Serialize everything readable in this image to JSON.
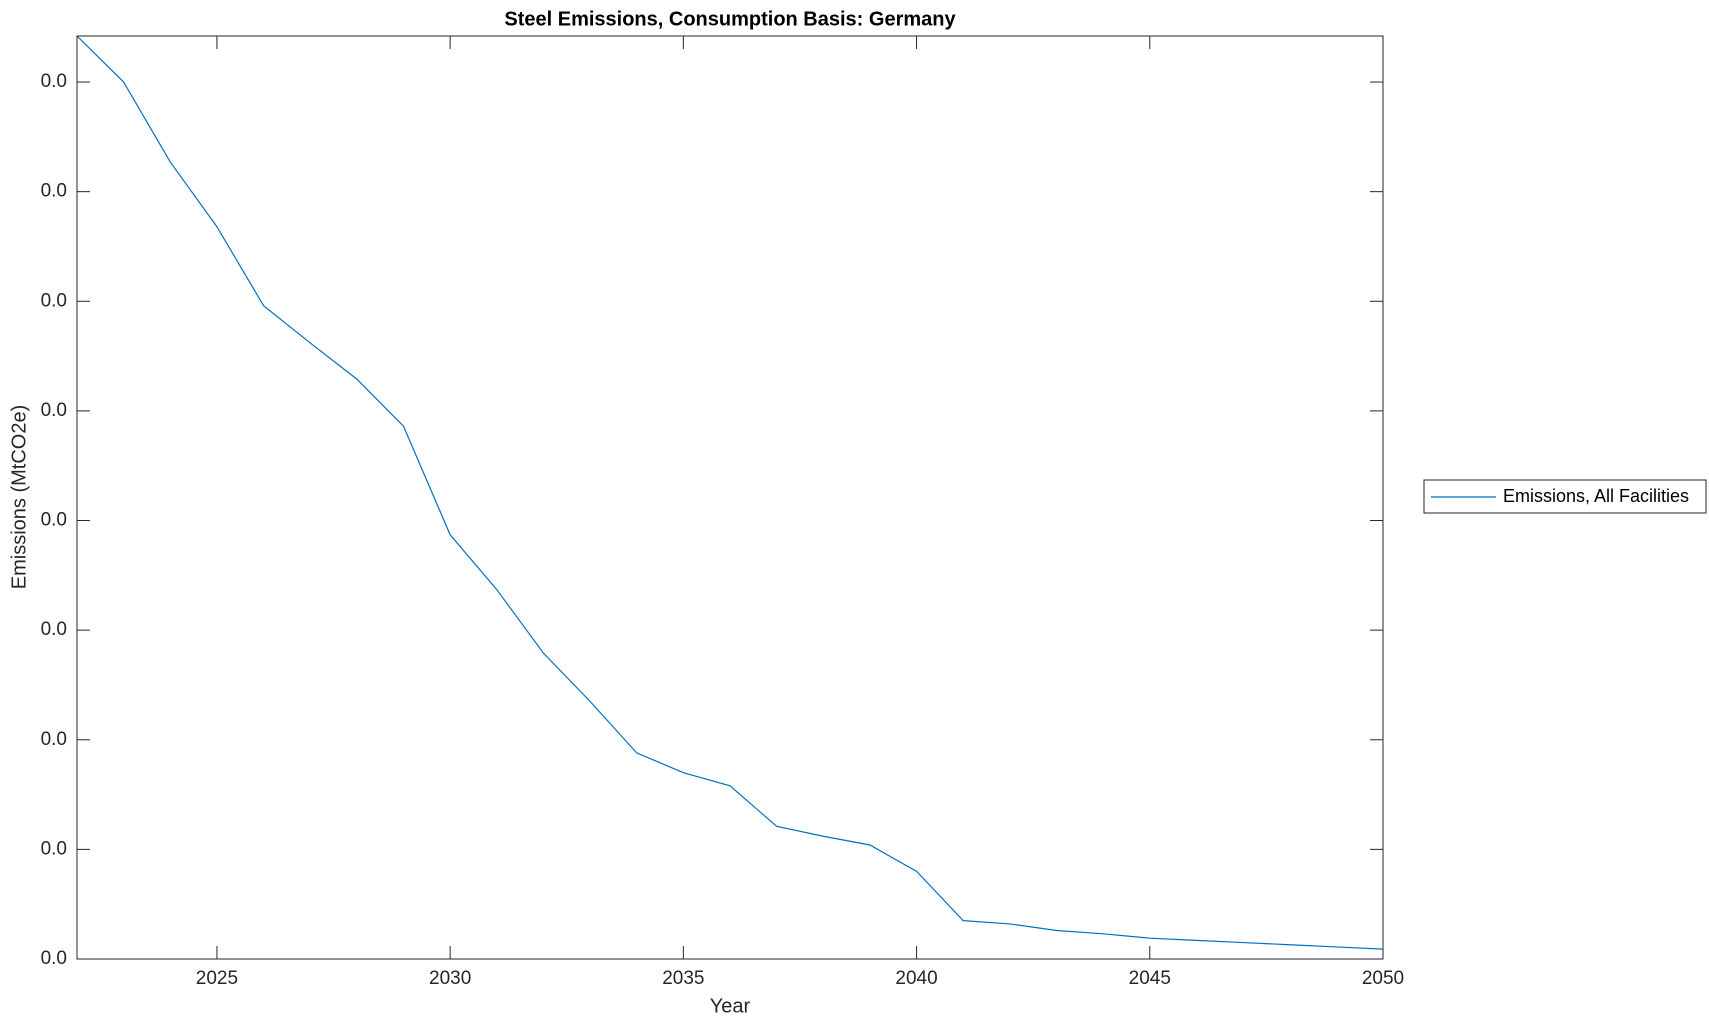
{
  "chart_data": {
    "type": "line",
    "title": "Steel Emissions, Consumption Basis: Germany",
    "xlabel": "Year",
    "ylabel": "Emissions (MtCO2e)",
    "x": [
      2022,
      2023,
      2024,
      2025,
      2026,
      2027,
      2028,
      2029,
      2030,
      2031,
      2032,
      2033,
      2034,
      2035,
      2036,
      2037,
      2038,
      2039,
      2040,
      2041,
      2042,
      2043,
      2044,
      2045,
      2046,
      2047,
      2048,
      2049,
      2050
    ],
    "series": [
      {
        "name": "Emissions, All Facilities",
        "color": "#0072bd",
        "values": [
          0.0421,
          0.04,
          0.03635,
          0.0334,
          0.0298,
          0.0281,
          0.02645,
          0.0243,
          0.01935,
          0.01685,
          0.01395,
          0.01175,
          0.0094,
          0.0085,
          0.0079,
          0.00605,
          0.0056,
          0.0052,
          0.004,
          0.00175,
          0.0016,
          0.0013,
          0.00115,
          0.00095,
          0.00085,
          0.00075,
          0.00065,
          0.00055,
          0.00045
        ]
      }
    ],
    "xlim": [
      2022,
      2050
    ],
    "xticks": [
      2025,
      2030,
      2035,
      2040,
      2045,
      2050
    ],
    "ylim": [
      0,
      0.0421
    ],
    "yticks": [
      {
        "value": 0,
        "label": "0.0"
      },
      {
        "value": 0.005,
        "label": "0.0"
      },
      {
        "value": 0.01,
        "label": "0.0"
      },
      {
        "value": 0.015,
        "label": "0.0"
      },
      {
        "value": 0.02,
        "label": "0.0"
      },
      {
        "value": 0.025,
        "label": "0.0"
      },
      {
        "value": 0.03,
        "label": "0.0"
      },
      {
        "value": 0.035,
        "label": "0.0"
      },
      {
        "value": 0.04,
        "label": "0.0"
      }
    ],
    "grid": false,
    "legend": "outside-right"
  }
}
